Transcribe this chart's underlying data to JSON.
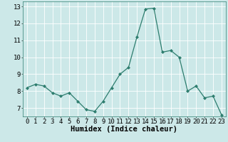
{
  "x": [
    0,
    1,
    2,
    3,
    4,
    5,
    6,
    7,
    8,
    9,
    10,
    11,
    12,
    13,
    14,
    15,
    16,
    17,
    18,
    19,
    20,
    21,
    22,
    23
  ],
  "y": [
    8.2,
    8.4,
    8.3,
    7.9,
    7.7,
    7.9,
    7.4,
    6.9,
    6.8,
    7.4,
    8.2,
    9.0,
    9.4,
    11.2,
    12.85,
    12.9,
    10.3,
    10.4,
    10.0,
    8.0,
    8.3,
    7.6,
    7.7,
    6.6
  ],
  "xlabel": "Humidex (Indice chaleur)",
  "ylim": [
    6.5,
    13.3
  ],
  "xlim": [
    -0.5,
    23.5
  ],
  "yticks": [
    7,
    8,
    9,
    10,
    11,
    12,
    13
  ],
  "xticks": [
    0,
    1,
    2,
    3,
    4,
    5,
    6,
    7,
    8,
    9,
    10,
    11,
    12,
    13,
    14,
    15,
    16,
    17,
    18,
    19,
    20,
    21,
    22,
    23
  ],
  "line_color": "#2d7d6e",
  "marker_color": "#2d7d6e",
  "bg_color": "#cce8e8",
  "grid_color": "#ffffff",
  "xlabel_fontsize": 7.5,
  "tick_fontsize": 6.5
}
